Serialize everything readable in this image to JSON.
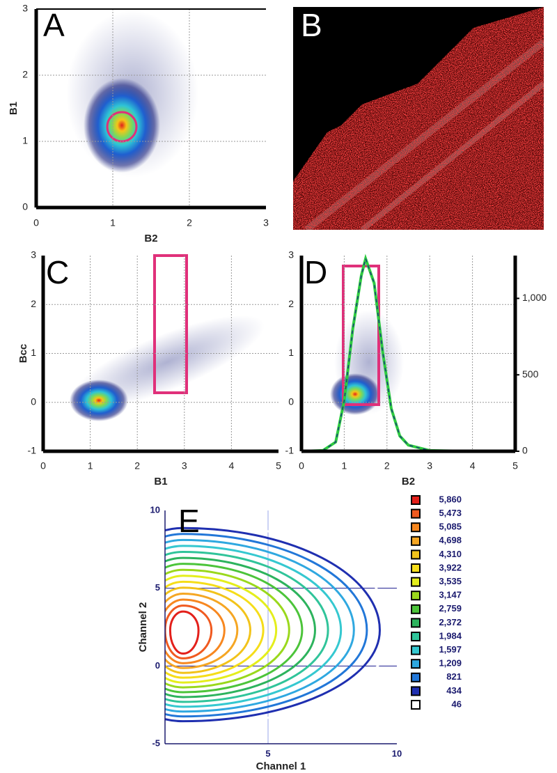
{
  "chart_data": [
    {
      "type": "scatter",
      "panel": "A",
      "xlabel": "B2",
      "ylabel": "B1",
      "xlim": [
        0,
        3
      ],
      "ylim": [
        0,
        3
      ],
      "xticks": [
        0,
        1,
        2,
        3
      ],
      "yticks": [
        0,
        1,
        2,
        3
      ],
      "grid": true
    },
    {
      "type": "image",
      "panel": "B"
    },
    {
      "type": "scatter",
      "panel": "C",
      "xlabel": "B1",
      "ylabel": "Bcc",
      "xlim": [
        0,
        5
      ],
      "ylim": [
        -1,
        3
      ],
      "xticks": [
        0,
        1,
        2,
        3,
        4,
        5
      ],
      "yticks": [
        -1,
        0,
        1,
        2,
        3
      ],
      "grid": true
    },
    {
      "type": "scatter",
      "panel": "D",
      "xlabel": "B2",
      "xlim": [
        0,
        5
      ],
      "ylim": [
        -1,
        3
      ],
      "xticks": [
        0,
        1,
        2,
        3,
        4,
        5
      ],
      "yticks": [
        -1,
        0,
        1,
        2,
        3
      ],
      "grid": true,
      "y2lim": [
        0,
        1280
      ],
      "y2ticks": [
        0,
        500,
        {
          "value": 1000,
          "label": "1,000"
        }
      ],
      "series": [
        {
          "color": "#2ecc40",
          "axis": "y2",
          "x": [
            0,
            0.5,
            0.8,
            1.0,
            1.2,
            1.4,
            1.5,
            1.7,
            1.9,
            2.1,
            2.3,
            2.5,
            3,
            4,
            5
          ],
          "values": [
            0,
            5,
            60,
            330,
            800,
            1150,
            1260,
            1100,
            650,
            280,
            100,
            40,
            5,
            0,
            0
          ]
        }
      ]
    },
    {
      "type": "contour",
      "panel": "E",
      "xlabel": "Channel 1",
      "ylabel": "Channel 2",
      "xlim": [
        1,
        10
      ],
      "ylim": [
        -5,
        10
      ],
      "xticks": [
        5,
        10
      ],
      "yticks": [
        -5,
        0,
        5,
        10
      ],
      "grid": true,
      "levels": [
        5860,
        5473,
        5085,
        4698,
        4310,
        3922,
        3535,
        3147,
        2759,
        2372,
        1984,
        1597,
        1209,
        821,
        434,
        46
      ],
      "level_labels": [
        "5,860",
        "5,473",
        "5,085",
        "4,698",
        "4,310",
        "3,922",
        "3,535",
        "3,147",
        "2,759",
        "2,372",
        "1,984",
        "1,597",
        "1,209",
        "821",
        "434",
        "46"
      ],
      "colors": [
        "#e3201b",
        "#f05a20",
        "#f7871f",
        "#f5a623",
        "#f2c31a",
        "#f5dd1a",
        "#e4ee1c",
        "#9ad81c",
        "#4cc43a",
        "#2db35d",
        "#30c49a",
        "#35c8d0",
        "#2fa8e0",
        "#2277d8",
        "#1f2fb0",
        "#ffffff"
      ]
    }
  ]
}
